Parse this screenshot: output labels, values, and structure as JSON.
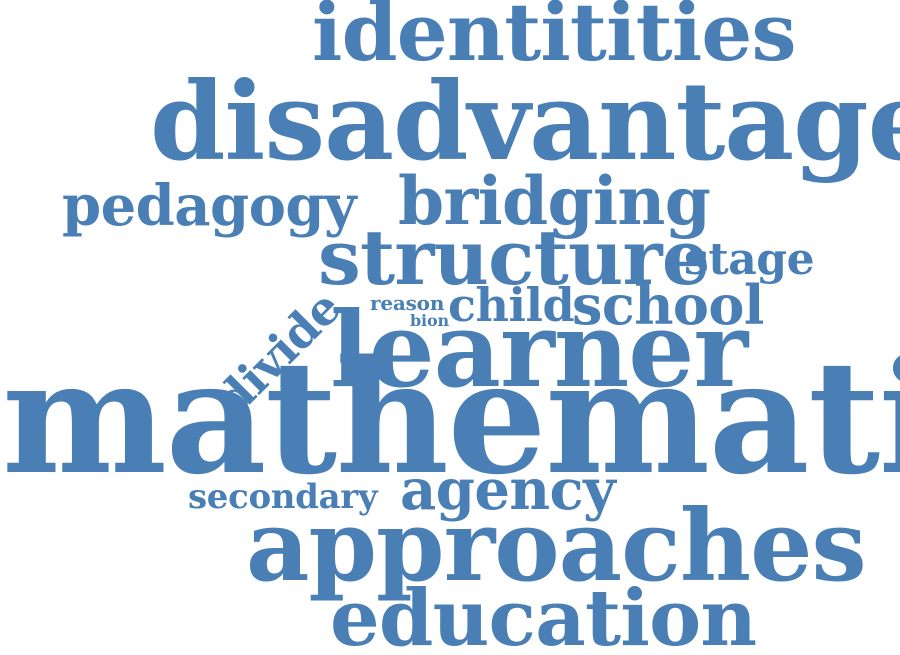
{
  "colors": {
    "text": "#4a7fb5",
    "background": "#ffffff"
  },
  "words": {
    "identitities": "identitities",
    "disadvantage": "disadvantage",
    "pedagogy": "pedagogy",
    "bridging": "bridging",
    "structure": "structure",
    "stage": "stage",
    "divide": "divide",
    "reason": "reason",
    "bion": "bion",
    "child": "child",
    "school": "school",
    "learner": "learner",
    "mathematic": "mathematic",
    "secondary": "secondary",
    "agency": "agency",
    "approaches": "approaches",
    "education": "education"
  }
}
